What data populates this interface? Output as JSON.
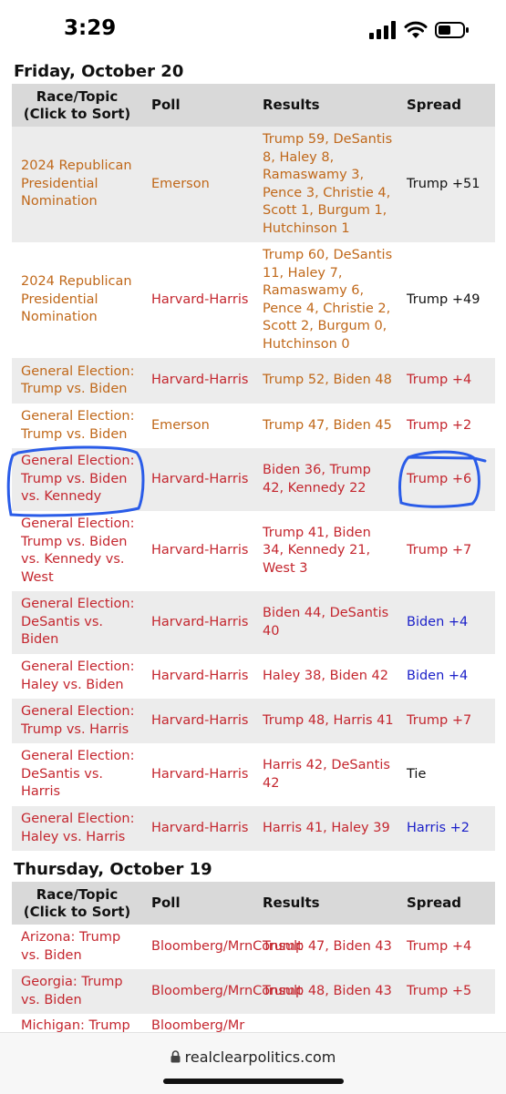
{
  "status_bar": {
    "time": "3:29"
  },
  "colors": {
    "orange": "#c0681a",
    "red": "#c4262e",
    "blue": "#1a1fc8",
    "header_bg": "#d9d9d9",
    "row_alt_bg": "#ececec",
    "annotation": "#2a5ce8"
  },
  "columns": {
    "race": "Race/Topic",
    "race_sub": "(Click to Sort)",
    "poll": "Poll",
    "results": "Results",
    "spread": "Spread"
  },
  "sections": [
    {
      "date": "Friday, October 20",
      "rows": [
        {
          "race": "2024 Republican Presidential Nomination",
          "poll": "Emerson",
          "results": "Trump 59, DeSantis 8, Haley 8, Ramaswamy 3, Pence 3, Christie 4, Scott 1, Burgum 1, Hutchinson 1",
          "spread": "Trump +51",
          "race_color": "orange",
          "poll_color": "orange",
          "results_color": "orange",
          "spread_color": "black"
        },
        {
          "race": "2024 Republican Presidential Nomination",
          "poll": "Harvard-Harris",
          "results": "Trump 60, DeSantis 11, Haley 7, Ramaswamy 6, Pence 4, Christie 2, Scott 2, Burgum 0, Hutchinson 0",
          "spread": "Trump +49",
          "race_color": "orange",
          "poll_color": "red",
          "results_color": "orange",
          "spread_color": "black"
        },
        {
          "race": "General Election: Trump vs. Biden",
          "poll": "Harvard-Harris",
          "results": "Trump 52, Biden 48",
          "spread": "Trump +4",
          "race_color": "orange",
          "poll_color": "red",
          "results_color": "orange",
          "spread_color": "red"
        },
        {
          "race": "General Election: Trump vs. Biden",
          "poll": "Emerson",
          "results": "Trump 47, Biden 45",
          "spread": "Trump +2",
          "race_color": "orange",
          "poll_color": "orange",
          "results_color": "orange",
          "spread_color": "red"
        },
        {
          "race": "General Election: Trump vs. Biden vs. Kennedy",
          "poll": "Harvard-Harris",
          "results": "Biden 36, Trump 42, Kennedy 22",
          "spread": "Trump +6",
          "race_color": "red",
          "poll_color": "red",
          "results_color": "red",
          "spread_color": "red"
        },
        {
          "race": "General Election: Trump vs. Biden vs. Kennedy vs. West",
          "poll": "Harvard-Harris",
          "results": "Trump 41, Biden 34, Kennedy 21, West 3",
          "spread": "Trump +7",
          "race_color": "red",
          "poll_color": "red",
          "results_color": "red",
          "spread_color": "red"
        },
        {
          "race": "General Election: DeSantis vs. Biden",
          "poll": "Harvard-Harris",
          "results": "Biden 44, DeSantis 40",
          "spread": "Biden +4",
          "race_color": "red",
          "poll_color": "red",
          "results_color": "red",
          "spread_color": "blue"
        },
        {
          "race": "General Election: Haley vs. Biden",
          "poll": "Harvard-Harris",
          "results": "Haley 38, Biden 42",
          "spread": "Biden +4",
          "race_color": "red",
          "poll_color": "red",
          "results_color": "red",
          "spread_color": "blue"
        },
        {
          "race": "General Election: Trump vs. Harris",
          "poll": "Harvard-Harris",
          "results": "Trump 48, Harris 41",
          "spread": "Trump +7",
          "race_color": "red",
          "poll_color": "red",
          "results_color": "red",
          "spread_color": "red"
        },
        {
          "race": "General Election: DeSantis vs. Harris",
          "poll": "Harvard-Harris",
          "results": "Harris 42, DeSantis 42",
          "spread": "Tie",
          "race_color": "red",
          "poll_color": "red",
          "results_color": "red",
          "spread_color": "black"
        },
        {
          "race": "General Election: Haley vs. Harris",
          "poll": "Harvard-Harris",
          "results": "Harris 41, Haley 39",
          "spread": "Harris +2",
          "race_color": "red",
          "poll_color": "red",
          "results_color": "red",
          "spread_color": "blue"
        }
      ]
    },
    {
      "date": "Thursday, October 19",
      "rows": [
        {
          "race": "Arizona: Trump vs. Biden",
          "poll": "Bloomberg/MrnConsult",
          "results": "Trump 47, Biden 43",
          "spread": "Trump +4",
          "race_color": "red",
          "poll_color": "red",
          "results_color": "red",
          "spread_color": "red"
        },
        {
          "race": "Georgia: Trump vs. Biden",
          "poll": "Bloomberg/MrnConsult",
          "results": "Trump 48, Biden 43",
          "spread": "Trump +5",
          "race_color": "red",
          "poll_color": "red",
          "results_color": "red",
          "spread_color": "red"
        },
        {
          "race": "Michigan: Trump",
          "poll": "Bloomberg/Mr",
          "results": "",
          "spread": "",
          "race_color": "red",
          "poll_color": "red",
          "results_color": "red",
          "spread_color": "red"
        }
      ]
    }
  ],
  "browser": {
    "url": "realclearpolitics.com",
    "lock_icon": "lock-icon"
  },
  "annotations": [
    "hand-drawn-circle-race",
    "hand-drawn-circle-spread"
  ]
}
